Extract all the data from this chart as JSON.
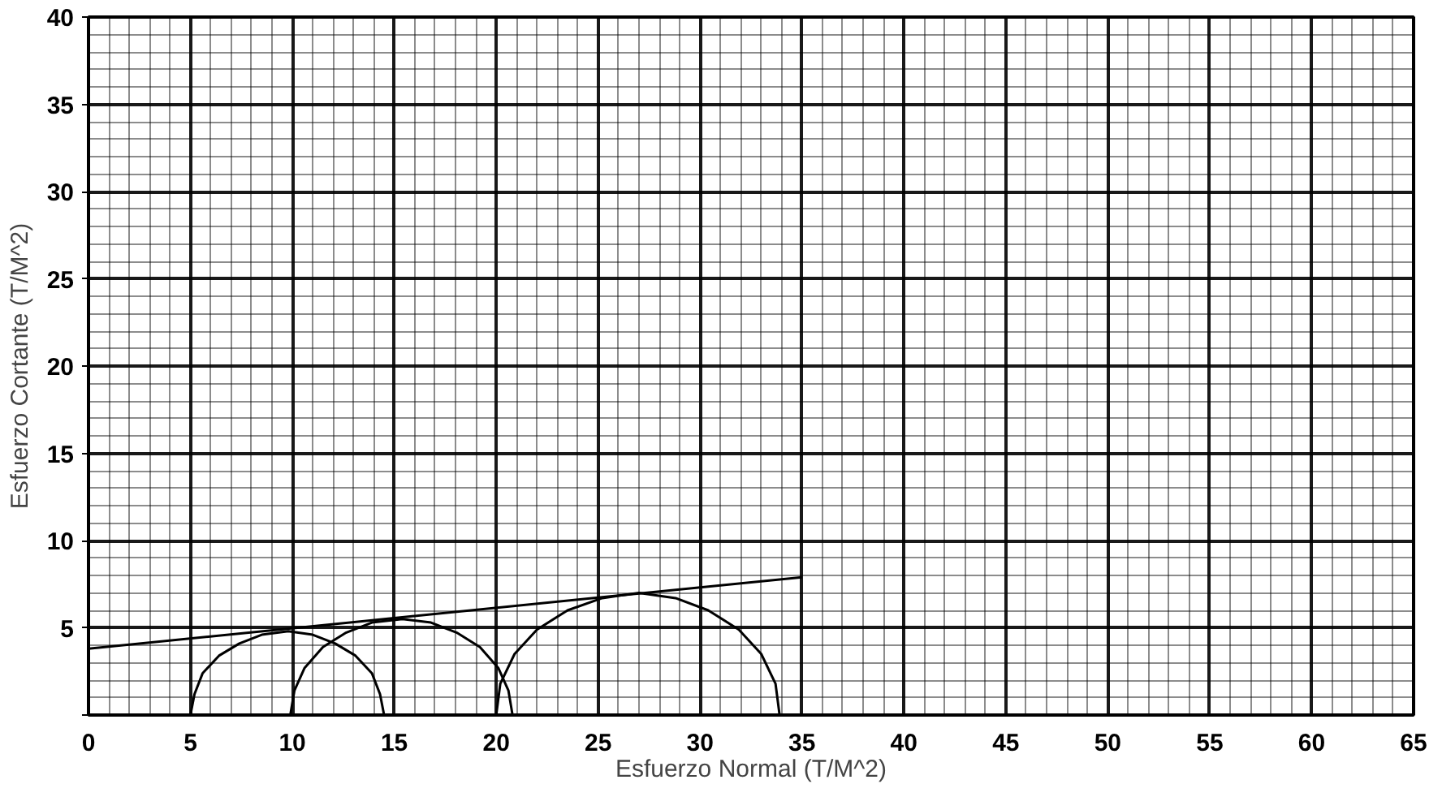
{
  "chart_data": {
    "type": "line",
    "xlabel": "Esfuerzo Normal (T/M^2)",
    "ylabel": "Esfuerzo Cortante (T/M^2)",
    "xlim": [
      0,
      65
    ],
    "ylim": [
      0,
      40
    ],
    "xticks": [
      0,
      5,
      10,
      15,
      20,
      25,
      30,
      35,
      40,
      45,
      50,
      55,
      60,
      65
    ],
    "yticks": [
      {
        "value": 0,
        "label": null
      },
      5,
      10,
      15,
      20,
      25,
      30,
      35,
      40
    ],
    "grid": true,
    "series": [
      {
        "color": "#000000",
        "x": [
          5.0,
          5.2,
          5.6,
          6.4,
          7.4,
          8.5,
          9.8,
          11.0,
          12.1,
          13.1,
          13.9,
          14.3,
          14.5
        ],
        "values": [
          0,
          1.2,
          2.4,
          3.4,
          4.1,
          4.6,
          4.8,
          4.6,
          4.1,
          3.4,
          2.4,
          1.2,
          0
        ]
      },
      {
        "color": "#000000",
        "x": [
          9.9,
          10.1,
          10.6,
          11.5,
          12.6,
          13.9,
          15.4,
          16.8,
          18.1,
          19.2,
          20.1,
          20.6,
          20.8
        ],
        "values": [
          0,
          1.4,
          2.7,
          3.9,
          4.7,
          5.3,
          5.5,
          5.3,
          4.7,
          3.9,
          2.7,
          1.4,
          0
        ]
      },
      {
        "color": "#000000",
        "x": [
          20.0,
          20.2,
          20.9,
          22.0,
          23.5,
          25.2,
          27.0,
          28.8,
          30.4,
          31.9,
          33.0,
          33.7,
          33.9
        ],
        "values": [
          0,
          1.8,
          3.5,
          4.9,
          6.0,
          6.7,
          7.0,
          6.7,
          6.0,
          4.9,
          3.5,
          1.8,
          0
        ]
      },
      {
        "color": "#000000",
        "x": [
          0,
          35
        ],
        "values": [
          3.8,
          7.9
        ]
      }
    ]
  }
}
